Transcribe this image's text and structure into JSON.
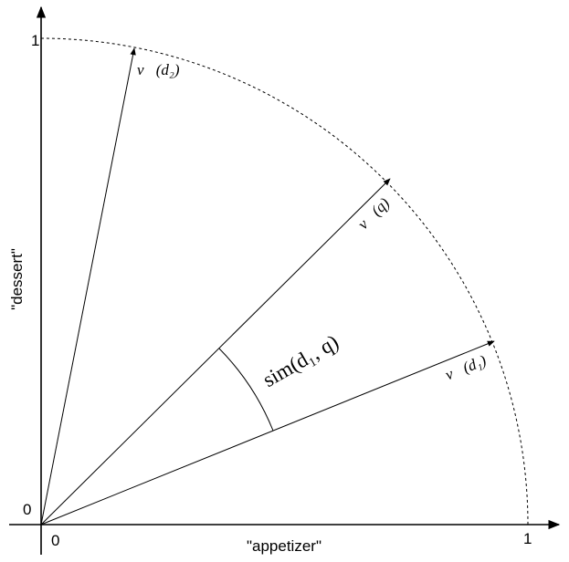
{
  "axes": {
    "x_label": "\"appetizer\"",
    "y_label": "\"dessert\"",
    "x_ticks": [
      "0",
      "1"
    ],
    "y_ticks": [
      "0",
      "1"
    ]
  },
  "vectors": [
    {
      "label": "v⃗(d₂)"
    },
    {
      "label": "v⃗(q)"
    },
    {
      "label": "v⃗(d₁)"
    }
  ],
  "angle_label": "sim(d₁, q)"
}
